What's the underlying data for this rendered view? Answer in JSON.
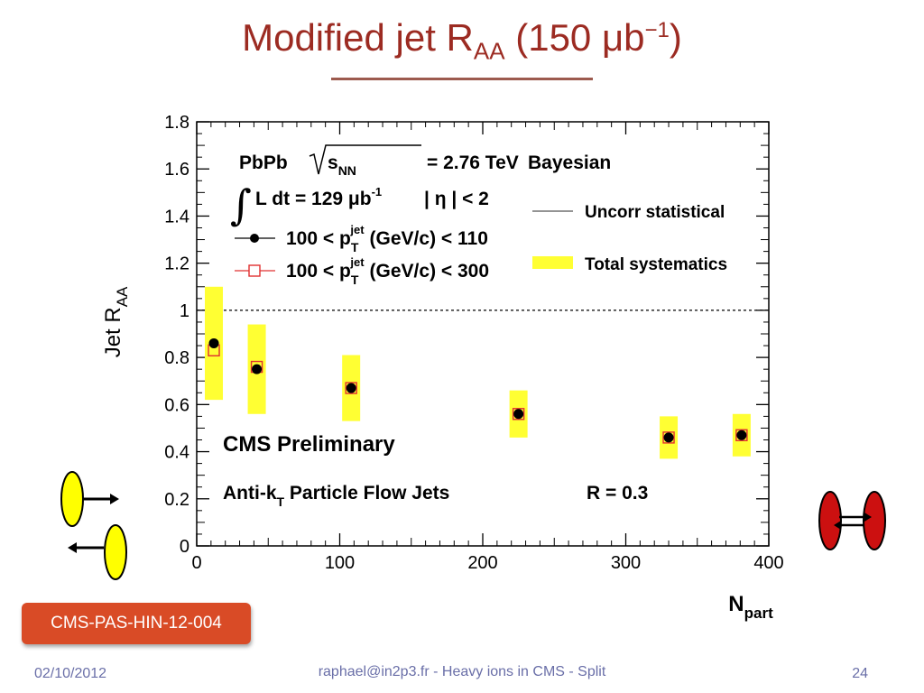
{
  "slide": {
    "title_main": "Modified jet R",
    "title_sub": "AA",
    "title_after": " (150 μb",
    "title_sup": "−1",
    "title_close": ")",
    "reference": "CMS-PAS-HIN-12-004",
    "footer_date": "02/10/2012",
    "footer_center": "raphael@in2p3.fr - Heavy ions in CMS - Split",
    "page_number": "24"
  },
  "colors": {
    "title": "#9c2b22",
    "badge": "#d94b26",
    "systematics": "#ffff33",
    "series1": "#000000",
    "series2": "#e03030",
    "ellipse_peripheral": "#ffff00",
    "ellipse_central": "#cc1010"
  },
  "chart_data": {
    "type": "scatter",
    "xlabel": "N",
    "xlabel_sub": "part",
    "ylabel": "Jet R",
    "ylabel_sub": "AA",
    "xlim": [
      0,
      400
    ],
    "ylim": [
      0,
      1.8
    ],
    "x_ticks": [
      "0",
      "100",
      "200",
      "300",
      "400"
    ],
    "y_ticks": [
      "0",
      "0.2",
      "0.4",
      "0.6",
      "0.8",
      "1",
      "1.2",
      "1.4",
      "1.6",
      "1.8"
    ],
    "reference_line": 1,
    "series": [
      {
        "name": "100 < p_T^jet (GeV/c) < 110",
        "marker": "filled-circle",
        "x": [
          12,
          42,
          108,
          225,
          330,
          381
        ],
        "y": [
          0.86,
          0.75,
          0.67,
          0.56,
          0.46,
          0.47
        ]
      },
      {
        "name": "100 < p_T^jet (GeV/c) < 300",
        "marker": "open-square",
        "x": [
          12,
          42,
          108,
          225,
          330,
          381
        ],
        "y": [
          0.83,
          0.76,
          0.67,
          0.56,
          0.46,
          0.47
        ]
      }
    ],
    "systematics": [
      {
        "x": 12,
        "lo": 0.62,
        "hi": 1.1
      },
      {
        "x": 42,
        "lo": 0.56,
        "hi": 0.94
      },
      {
        "x": 108,
        "lo": 0.53,
        "hi": 0.81
      },
      {
        "x": 225,
        "lo": 0.46,
        "hi": 0.66
      },
      {
        "x": 330,
        "lo": 0.37,
        "hi": 0.55
      },
      {
        "x": 381,
        "lo": 0.38,
        "hi": 0.56
      }
    ],
    "annotations": {
      "collision": "PbPb",
      "energy": "= 2.76 TeV",
      "sqrt_label": "s",
      "sqrt_sub": "NN",
      "lumi": "L dt = 129 μb",
      "lumi_sup": "-1",
      "eta": "| η | < 2",
      "method": "Bayesian",
      "legend_stat": "Uncorr statistical",
      "legend_sys": "Total systematics",
      "legend_s1_pre": "100 < p",
      "legend_s1_post": "(GeV/c) < 110",
      "legend_s2_pre": "100 < p",
      "legend_s2_post": "(GeV/c) < 300",
      "pt_sup": "jet",
      "pt_sub": "T",
      "cms": "CMS Preliminary",
      "algo_pre": "Anti-k",
      "algo_sub": "T",
      "algo_post": " Particle Flow Jets",
      "radius": "R = 0.3"
    }
  }
}
